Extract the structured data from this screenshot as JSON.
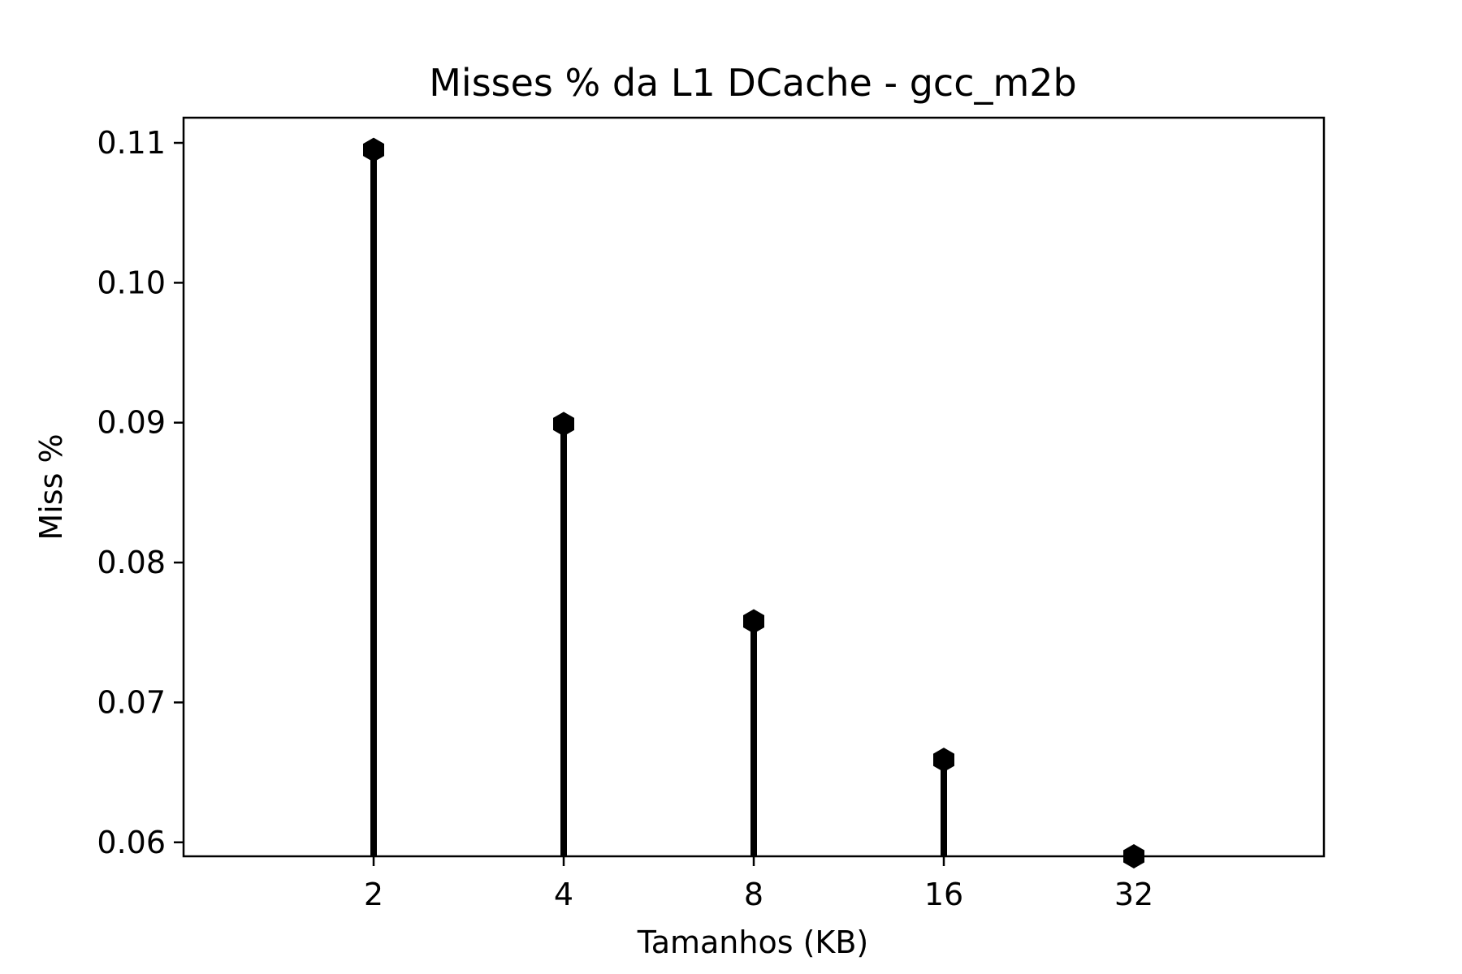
{
  "chart_data": {
    "type": "stem",
    "title": "Misses % da L1 DCache - gcc_m2b",
    "xlabel": "Tamanhos (KB)",
    "ylabel": "Miss %",
    "categories": [
      "2",
      "4",
      "8",
      "16",
      "32"
    ],
    "values": [
      0.1095,
      0.0899,
      0.0758,
      0.0659,
      0.059
    ],
    "ylim": [
      0.059,
      0.1118
    ],
    "yticks": [
      0.06,
      0.07,
      0.08,
      0.09,
      0.1,
      0.11
    ],
    "ytick_labels": [
      "0.06",
      "0.07",
      "0.08",
      "0.09",
      "0.10",
      "0.11"
    ],
    "grid": false,
    "marker": "hexagon",
    "color": "#000000"
  }
}
